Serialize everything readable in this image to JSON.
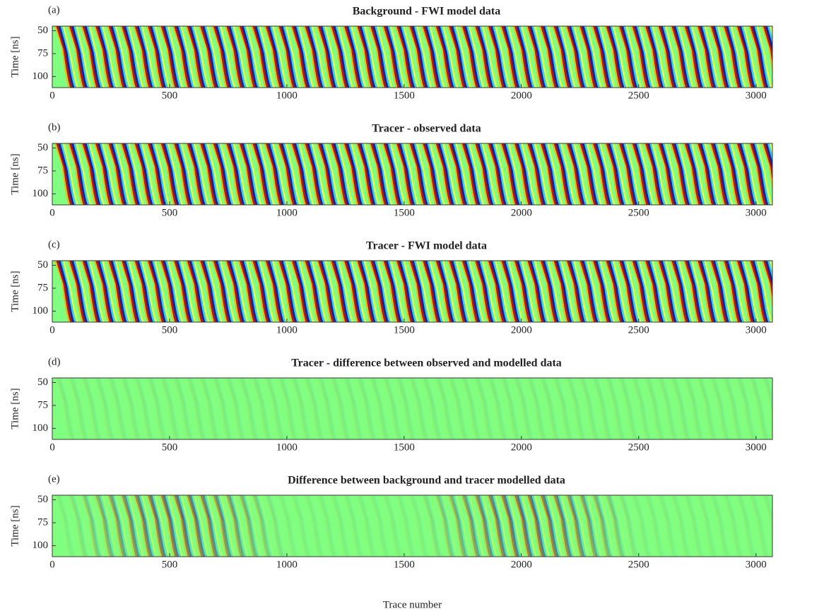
{
  "chart_data": [
    {
      "type": "heatmap",
      "label": "(a)",
      "title": "Background - FWI model data",
      "ylabel": "Time [ns]",
      "xlim": [
        0,
        3070
      ],
      "ylim": [
        45,
        112
      ],
      "y_reversed": true,
      "xticks": [
        0,
        500,
        1000,
        1500,
        2000,
        2500,
        3000
      ],
      "yticks": [
        50,
        75,
        100
      ]
    },
    {
      "type": "heatmap",
      "label": "(b)",
      "title": "Tracer - observed data",
      "ylabel": "Time [ns]",
      "xlim": [
        0,
        3070
      ],
      "ylim": [
        45,
        112
      ],
      "y_reversed": true,
      "xticks": [
        0,
        500,
        1000,
        1500,
        2000,
        2500,
        3000
      ],
      "yticks": [
        50,
        75,
        100
      ]
    },
    {
      "type": "heatmap",
      "label": "(c)",
      "title": "Tracer - FWI model data",
      "ylabel": "Time [ns]",
      "xlim": [
        0,
        3070
      ],
      "ylim": [
        45,
        112
      ],
      "y_reversed": true,
      "xticks": [
        0,
        500,
        1000,
        1500,
        2000,
        2500,
        3000
      ],
      "yticks": [
        50,
        75,
        100
      ]
    },
    {
      "type": "heatmap",
      "label": "(d)",
      "title": "Tracer - difference between observed and modelled data",
      "ylabel": "Time [ns]",
      "xlim": [
        0,
        3070
      ],
      "ylim": [
        45,
        112
      ],
      "y_reversed": true,
      "xticks": [
        0,
        500,
        1000,
        1500,
        2000,
        2500,
        3000
      ],
      "yticks": [
        50,
        75,
        100
      ]
    },
    {
      "type": "heatmap",
      "label": "(e)",
      "title": "Difference between background and tracer modelled data",
      "ylabel": "Time [ns]",
      "xlabel": "Trace number",
      "xlim": [
        0,
        3070
      ],
      "ylim": [
        45,
        112
      ],
      "y_reversed": true,
      "xticks": [
        0,
        500,
        1000,
        1500,
        2000,
        2500,
        3000
      ],
      "yticks": [
        50,
        75,
        100
      ]
    }
  ]
}
